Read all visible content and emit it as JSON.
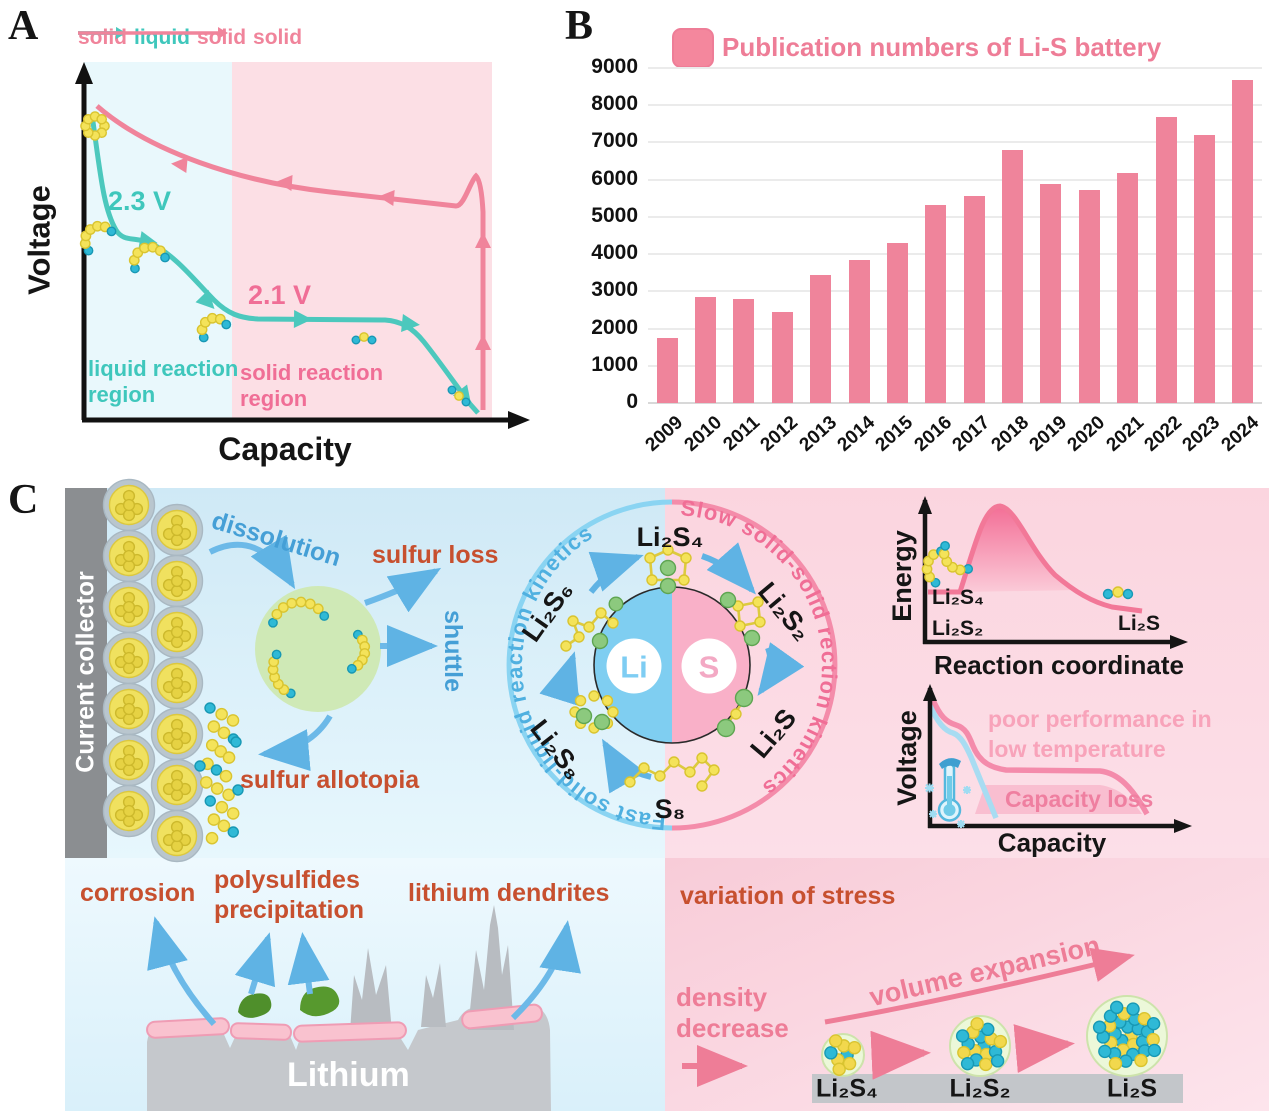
{
  "panel_a": {
    "label": "A",
    "sequence": {
      "s1": "solid",
      "s2": "liquid",
      "s3": "solid",
      "s4": "solid"
    },
    "ylabel": "Voltage",
    "xlabel": "Capacity",
    "plateau_high": "2.3 V",
    "plateau_low": "2.1 V",
    "region_liquid_l1": "liquid reaction",
    "region_liquid_l2": "region",
    "region_solid_l1": "solid reaction",
    "region_solid_l2": "region"
  },
  "panel_b": {
    "label": "B",
    "legend": "Publication numbers of Li-S battery"
  },
  "chart_data": {
    "type": "bar",
    "title": "Publication numbers of Li-S battery",
    "categories": [
      "2009",
      "2010",
      "2011",
      "2012",
      "2013",
      "2014",
      "2015",
      "2016",
      "2017",
      "2018",
      "2019",
      "2020",
      "2021",
      "2022",
      "2023",
      "2024"
    ],
    "values": [
      1750,
      2850,
      2800,
      2450,
      3450,
      3850,
      4300,
      5330,
      5570,
      6790,
      5880,
      5710,
      6190,
      7680,
      7190,
      8680
    ],
    "xlabel": "",
    "ylabel": "",
    "ylim": [
      0,
      9000
    ],
    "ytick_step": 1000,
    "grid": true,
    "legend_position": "top",
    "bar_color": "#ef849b"
  },
  "panel_c": {
    "label": "C",
    "current_collector": "Current collector",
    "dissolution": "dissolution",
    "sulfur_loss": "sulfur loss",
    "shuttle": "shuttle",
    "sulfur_allotopia": "sulfur allotopia",
    "arc_fast": "Fast solid-liquid reaction kinetics",
    "arc_slow": "Slow solid-solid rection kinetics",
    "li": "Li",
    "s": "S",
    "species": {
      "li2s4": "Li₂S₄",
      "li2s6": "Li₂S₆",
      "li2s8": "Li₂S₈",
      "s8": "S₈",
      "li2s2": "Li₂S₂",
      "li2s": "Li₂S"
    },
    "energy_plot": {
      "ylabel": "Energy",
      "xlabel": "Reaction coordinate",
      "start1": "Li₂S₄",
      "start2": "Li₂S₂",
      "end": "Li₂S"
    },
    "voltage_plot": {
      "ylabel": "Voltage",
      "xlabel": "Capacity",
      "note_l1": "poor performance in",
      "note_l2": "low temperature",
      "loss": "Capacity loss"
    },
    "anode": {
      "corrosion": "corrosion",
      "poly_l1": "polysulfides",
      "poly_l2": "precipitation",
      "dendrites": "lithium dendrites",
      "lithium": "Lithium"
    },
    "stress": {
      "title": "variation of stress",
      "density_l1": "density",
      "density_l2": "decrease",
      "volume": "volume expansion",
      "s1": "Li₂S₄",
      "s2": "Li₂S₂",
      "s3": "Li₂S"
    }
  }
}
